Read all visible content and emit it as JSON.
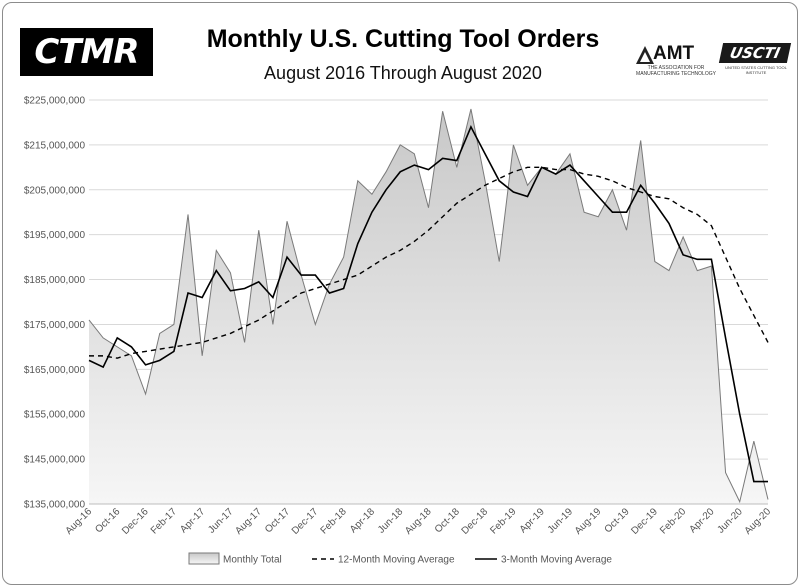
{
  "header": {
    "logo_left_text": "CTMR",
    "title": "Monthly U.S. Cutting Tool Orders",
    "subtitle": "August 2016 Through August 2020",
    "logo_amt_text": "AMT",
    "logo_amt_sub": "THE ASSOCIATION FOR MANUFACTURING TECHNOLOGY",
    "logo_uscti_text": "USCTI",
    "logo_uscti_sub": "UNITED STATES CUTTING TOOL INSTITUTE"
  },
  "colors": {
    "area_fill_top": "#c8c8c8",
    "area_fill_bottom": "#f6f6f6",
    "area_stroke": "#7a7a7a",
    "ma12": "#000000",
    "ma3": "#000000",
    "grid": "#d9d9d9"
  },
  "chart_data": {
    "type": "area",
    "title": "Monthly U.S. Cutting Tool Orders",
    "subtitle": "August 2016 Through August 2020",
    "xlabel": "",
    "ylabel": "",
    "ylim": [
      135000000,
      225000000
    ],
    "grid": true,
    "legend_position": "bottom",
    "yticks": [
      "$225,000,000",
      "$215,000,000",
      "$205,000,000",
      "$195,000,000",
      "$185,000,000",
      "$175,000,000",
      "$165,000,000",
      "$155,000,000",
      "$145,000,000",
      "$135,000,000"
    ],
    "ytick_values": [
      225000000,
      215000000,
      205000000,
      195000000,
      185000000,
      175000000,
      165000000,
      155000000,
      145000000,
      135000000
    ],
    "xtick_labels": [
      "Aug-16",
      "Oct-16",
      "Dec-16",
      "Feb-17",
      "Apr-17",
      "Jun-17",
      "Aug-17",
      "Oct-17",
      "Dec-17",
      "Feb-18",
      "Apr-18",
      "Jun-18",
      "Aug-18",
      "Oct-18",
      "Dec-18",
      "Feb-19",
      "Apr-19",
      "Jun-19",
      "Aug-19",
      "Oct-19",
      "Dec-19",
      "Feb-20",
      "Apr-20",
      "Jun-20",
      "Aug-20"
    ],
    "months": [
      "Aug-16",
      "Sep-16",
      "Oct-16",
      "Nov-16",
      "Dec-16",
      "Jan-17",
      "Feb-17",
      "Mar-17",
      "Apr-17",
      "May-17",
      "Jun-17",
      "Jul-17",
      "Aug-17",
      "Sep-17",
      "Oct-17",
      "Nov-17",
      "Dec-17",
      "Jan-18",
      "Feb-18",
      "Mar-18",
      "Apr-18",
      "May-18",
      "Jun-18",
      "Jul-18",
      "Aug-18",
      "Sep-18",
      "Oct-18",
      "Nov-18",
      "Dec-18",
      "Jan-19",
      "Feb-19",
      "Mar-19",
      "Apr-19",
      "May-19",
      "Jun-19",
      "Jul-19",
      "Aug-19",
      "Sep-19",
      "Oct-19",
      "Nov-19",
      "Dec-19",
      "Jan-20",
      "Feb-20",
      "Mar-20",
      "Apr-20",
      "May-20",
      "Jun-20",
      "Jul-20",
      "Aug-20"
    ],
    "series": [
      {
        "name": "Monthly Total",
        "style": "area",
        "values": [
          176000000,
          172000000,
          170000000,
          168000000,
          159500000,
          173000000,
          175000000,
          199500000,
          168000000,
          191500000,
          186500000,
          171000000,
          196000000,
          175000000,
          198000000,
          186000000,
          175000000,
          184000000,
          190000000,
          207000000,
          204000000,
          209000000,
          215000000,
          213000000,
          201000000,
          222500000,
          210000000,
          223000000,
          207000000,
          189000000,
          215000000,
          206000000,
          210000000,
          208500000,
          213000000,
          200000000,
          199000000,
          205000000,
          196000000,
          216000000,
          189000000,
          187000000,
          194500000,
          187000000,
          188000000,
          142000000,
          135500000,
          149000000,
          136000000
        ]
      },
      {
        "name": "12-Month Moving Average",
        "style": "dashed",
        "values": [
          168000000,
          168000000,
          167500000,
          168500000,
          169000000,
          169500000,
          170000000,
          170500000,
          171000000,
          172000000,
          173000000,
          174500000,
          176000000,
          178000000,
          180000000,
          182000000,
          183000000,
          184000000,
          185000000,
          186000000,
          188000000,
          190000000,
          191500000,
          193500000,
          196000000,
          199000000,
          202000000,
          204000000,
          206000000,
          207500000,
          209000000,
          210000000,
          210000000,
          209500000,
          209500000,
          208500000,
          208000000,
          207000000,
          205500000,
          204500000,
          203500000,
          203000000,
          201000000,
          199500000,
          197000000,
          190000000,
          183000000,
          177000000,
          171000000
        ]
      },
      {
        "name": "3-Month Moving Average",
        "style": "solid",
        "values": [
          167000000,
          165500000,
          172000000,
          170000000,
          166000000,
          167000000,
          169000000,
          182000000,
          181000000,
          187000000,
          182500000,
          183000000,
          184500000,
          181000000,
          190000000,
          186000000,
          186000000,
          182000000,
          183000000,
          193000000,
          200000000,
          205000000,
          209000000,
          210500000,
          209500000,
          212000000,
          211500000,
          219000000,
          213000000,
          207000000,
          204500000,
          203500000,
          210000000,
          208500000,
          210500000,
          207000000,
          203500000,
          200000000,
          200000000,
          206000000,
          202000000,
          197500000,
          190500000,
          189500000,
          189500000,
          172000000,
          155000000,
          140000000,
          140000000
        ]
      }
    ]
  }
}
